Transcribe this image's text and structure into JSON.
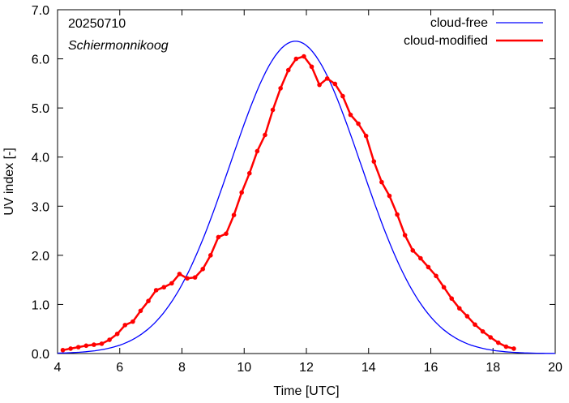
{
  "chart_data": {
    "type": "line",
    "date": "20250710",
    "location": "Schiermonnikoog",
    "xlabel": "Time  [UTC]",
    "ylabel": "UV index  [-]",
    "xlim": [
      4,
      20
    ],
    "ylim": [
      0,
      7
    ],
    "xticks": [
      4,
      6,
      8,
      10,
      12,
      14,
      16,
      18,
      20
    ],
    "yticks": [
      "0.0",
      "1.0",
      "2.0",
      "3.0",
      "4.0",
      "5.0",
      "6.0",
      "7.0"
    ],
    "legend_position": "top-right",
    "series": [
      {
        "name": "cloud-free",
        "color": "#0000ff",
        "gaussian": {
          "peak": 6.36,
          "center": 11.65,
          "sigma": 2.1,
          "step": 0.1
        }
      },
      {
        "name": "cloud-modified",
        "color": "#ff0000",
        "x": [
          4.17,
          4.42,
          4.67,
          4.92,
          5.17,
          5.42,
          5.67,
          5.92,
          6.17,
          6.42,
          6.67,
          6.92,
          7.17,
          7.42,
          7.67,
          7.92,
          8.17,
          8.42,
          8.67,
          8.92,
          9.17,
          9.42,
          9.67,
          9.92,
          10.17,
          10.42,
          10.67,
          10.92,
          11.17,
          11.42,
          11.67,
          11.92,
          12.17,
          12.42,
          12.67,
          12.92,
          13.17,
          13.42,
          13.67,
          13.92,
          14.17,
          14.42,
          14.67,
          14.92,
          15.17,
          15.42,
          15.67,
          15.92,
          16.17,
          16.42,
          16.67,
          16.92,
          17.17,
          17.42,
          17.67,
          17.92,
          18.17,
          18.42,
          18.67
        ],
        "values": [
          0.07,
          0.1,
          0.13,
          0.16,
          0.18,
          0.2,
          0.28,
          0.4,
          0.58,
          0.65,
          0.87,
          1.07,
          1.29,
          1.35,
          1.43,
          1.62,
          1.53,
          1.55,
          1.72,
          2.0,
          2.37,
          2.44,
          2.82,
          3.28,
          3.67,
          4.12,
          4.45,
          4.96,
          5.4,
          5.77,
          6.0,
          6.05,
          5.84,
          5.47,
          5.6,
          5.49,
          5.24,
          4.86,
          4.68,
          4.43,
          3.91,
          3.49,
          3.21,
          2.83,
          2.41,
          2.1,
          1.94,
          1.76,
          1.58,
          1.35,
          1.12,
          0.92,
          0.76,
          0.59,
          0.45,
          0.33,
          0.22,
          0.14,
          0.1
        ]
      }
    ]
  }
}
